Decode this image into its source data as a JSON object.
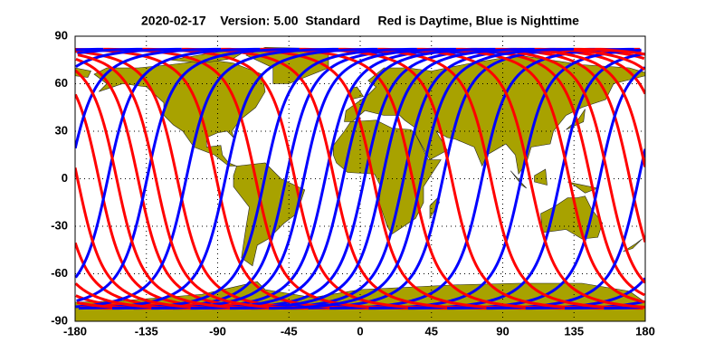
{
  "title": "2020-02-17    Version: 5.00  Standard     Red is Daytime, Blue is Nighttime",
  "axes": {
    "xlim": [
      -180,
      180
    ],
    "ylim": [
      -90,
      90
    ],
    "xticks": [
      -180,
      -135,
      -90,
      -45,
      0,
      45,
      90,
      135,
      180
    ],
    "yticks": [
      -90,
      -60,
      -30,
      0,
      30,
      60,
      90
    ]
  }
}
